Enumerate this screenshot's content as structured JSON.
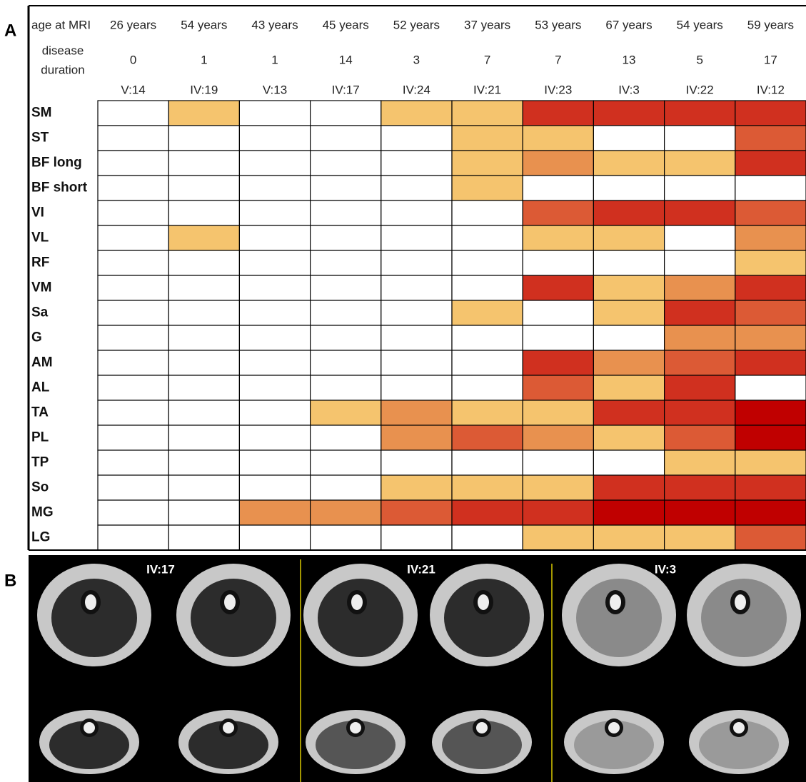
{
  "panel_a": {
    "letter": "A",
    "age_label": "age at MRI",
    "duration_label": [
      "disease",
      "duration"
    ],
    "patients": [
      {
        "age": "26 years",
        "duration": 0,
        "id": "V:14"
      },
      {
        "age": "54 years",
        "duration": 1,
        "id": "IV:19"
      },
      {
        "age": "43 years",
        "duration": 1,
        "id": "V:13"
      },
      {
        "age": "45 years",
        "duration": 14,
        "id": "IV:17"
      },
      {
        "age": "52 years",
        "duration": 3,
        "id": "IV:24"
      },
      {
        "age": "37 years",
        "duration": 7,
        "id": "IV:21"
      },
      {
        "age": "53 years",
        "duration": 7,
        "id": "IV:23"
      },
      {
        "age": "67 years",
        "duration": 13,
        "id": "IV:3"
      },
      {
        "age": "54 years",
        "duration": 5,
        "id": "IV:22"
      },
      {
        "age": "59 years",
        "duration": 17,
        "id": "IV:12"
      }
    ],
    "rows": [
      {
        "muscle": "SM",
        "cells": [
          "#ffffff",
          "#f5c46e",
          "#ffffff",
          "#ffffff",
          "#f5c46e",
          "#f5c46e",
          "#d0301f",
          "#d0301f",
          "#d0301f",
          "#d0301f"
        ]
      },
      {
        "muscle": "ST",
        "cells": [
          "#ffffff",
          "#ffffff",
          "#ffffff",
          "#ffffff",
          "#ffffff",
          "#f5c46e",
          "#f5c46e",
          "#ffffff",
          "#ffffff",
          "#dc5a35"
        ]
      },
      {
        "muscle": "BF long",
        "cells": [
          "#ffffff",
          "#ffffff",
          "#ffffff",
          "#ffffff",
          "#ffffff",
          "#f5c46e",
          "#e8914f",
          "#f5c46e",
          "#f5c46e",
          "#d0301f"
        ]
      },
      {
        "muscle": "BF short",
        "cells": [
          "#ffffff",
          "#ffffff",
          "#ffffff",
          "#ffffff",
          "#ffffff",
          "#f5c46e",
          "#ffffff",
          "#ffffff",
          "#ffffff",
          "#ffffff"
        ]
      },
      {
        "muscle": "VI",
        "cells": [
          "#ffffff",
          "#ffffff",
          "#ffffff",
          "#ffffff",
          "#ffffff",
          "#ffffff",
          "#dc5a35",
          "#d0301f",
          "#d0301f",
          "#dc5a35"
        ]
      },
      {
        "muscle": "VL",
        "cells": [
          "#ffffff",
          "#f5c46e",
          "#ffffff",
          "#ffffff",
          "#ffffff",
          "#ffffff",
          "#f5c46e",
          "#f5c46e",
          "#ffffff",
          "#e8914f"
        ]
      },
      {
        "muscle": "RF",
        "cells": [
          "#ffffff",
          "#ffffff",
          "#ffffff",
          "#ffffff",
          "#ffffff",
          "#ffffff",
          "#ffffff",
          "#ffffff",
          "#ffffff",
          "#f5c46e"
        ]
      },
      {
        "muscle": "VM",
        "cells": [
          "#ffffff",
          "#ffffff",
          "#ffffff",
          "#ffffff",
          "#ffffff",
          "#ffffff",
          "#d0301f",
          "#f5c46e",
          "#e8914f",
          "#d0301f"
        ]
      },
      {
        "muscle": "Sa",
        "cells": [
          "#ffffff",
          "#ffffff",
          "#ffffff",
          "#ffffff",
          "#ffffff",
          "#f5c46e",
          "#ffffff",
          "#f5c46e",
          "#d0301f",
          "#dc5a35"
        ]
      },
      {
        "muscle": "G",
        "cells": [
          "#ffffff",
          "#ffffff",
          "#ffffff",
          "#ffffff",
          "#ffffff",
          "#ffffff",
          "#ffffff",
          "#ffffff",
          "#e8914f",
          "#e8914f"
        ]
      },
      {
        "muscle": "AM",
        "cells": [
          "#ffffff",
          "#ffffff",
          "#ffffff",
          "#ffffff",
          "#ffffff",
          "#ffffff",
          "#d0301f",
          "#e8914f",
          "#dc5a35",
          "#d0301f"
        ]
      },
      {
        "muscle": "AL",
        "cells": [
          "#ffffff",
          "#ffffff",
          "#ffffff",
          "#ffffff",
          "#ffffff",
          "#ffffff",
          "#dc5a35",
          "#f5c46e",
          "#d0301f",
          "#ffffff"
        ]
      },
      {
        "muscle": "TA",
        "cells": [
          "#ffffff",
          "#ffffff",
          "#ffffff",
          "#f5c46e",
          "#e8914f",
          "#f5c46e",
          "#f5c46e",
          "#d0301f",
          "#d0301f",
          "#c00000"
        ]
      },
      {
        "muscle": "PL",
        "cells": [
          "#ffffff",
          "#ffffff",
          "#ffffff",
          "#ffffff",
          "#e8914f",
          "#dc5a35",
          "#e8914f",
          "#f5c46e",
          "#dc5a35",
          "#c00000"
        ]
      },
      {
        "muscle": "TP",
        "cells": [
          "#ffffff",
          "#ffffff",
          "#ffffff",
          "#ffffff",
          "#ffffff",
          "#ffffff",
          "#ffffff",
          "#ffffff",
          "#f5c46e",
          "#f5c46e"
        ]
      },
      {
        "muscle": "So",
        "cells": [
          "#ffffff",
          "#ffffff",
          "#ffffff",
          "#ffffff",
          "#f5c46e",
          "#f5c46e",
          "#f5c46e",
          "#d0301f",
          "#d0301f",
          "#d0301f"
        ]
      },
      {
        "muscle": "MG",
        "cells": [
          "#ffffff",
          "#ffffff",
          "#e8914f",
          "#e8914f",
          "#dc5a35",
          "#d0301f",
          "#d0301f",
          "#c00000",
          "#c00000",
          "#c00000"
        ]
      },
      {
        "muscle": "LG",
        "cells": [
          "#ffffff",
          "#ffffff",
          "#ffffff",
          "#ffffff",
          "#ffffff",
          "#ffffff",
          "#f5c46e",
          "#f5c46e",
          "#f5c46e",
          "#dc5a35"
        ]
      }
    ]
  },
  "panel_b": {
    "letter": "B",
    "image_labels": [
      "IV:17",
      "IV:21",
      "IV:3"
    ]
  }
}
